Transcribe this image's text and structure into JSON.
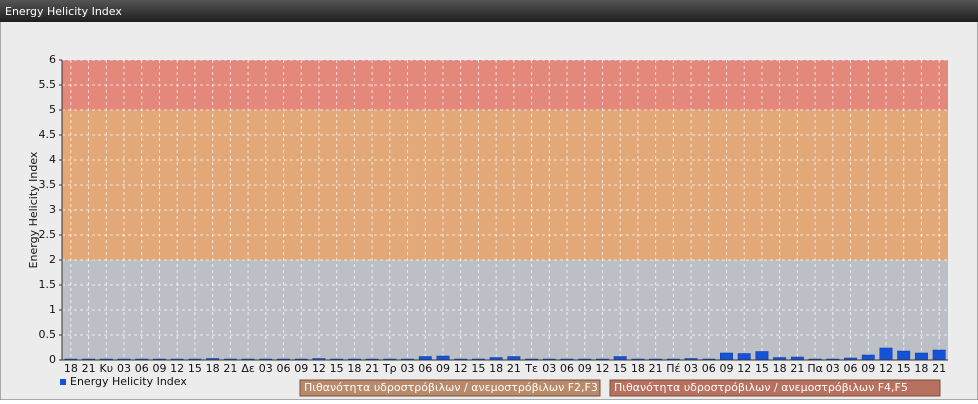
{
  "chart_data": {
    "type": "bar",
    "title": "Energy Helicity Index",
    "y_label": "Energy Helicity Index",
    "categories": [
      "18",
      "21",
      "Κυ",
      "03",
      "06",
      "09",
      "12",
      "15",
      "18",
      "21",
      "Δε",
      "03",
      "06",
      "09",
      "12",
      "15",
      "18",
      "21",
      "Τρ",
      "03",
      "06",
      "09",
      "12",
      "15",
      "18",
      "21",
      "Τε",
      "03",
      "06",
      "09",
      "12",
      "15",
      "18",
      "21",
      "Πέ",
      "03",
      "06",
      "09",
      "12",
      "15",
      "18",
      "21",
      "Πα",
      "03",
      "06",
      "09",
      "12",
      "15",
      "18",
      "21"
    ],
    "series": [
      {
        "name": "Energy Helicity Index",
        "color": "#1452d8",
        "values": [
          0.02,
          0.02,
          0.02,
          0.02,
          0.02,
          0.02,
          0.02,
          0.02,
          0.03,
          0.02,
          0.02,
          0.02,
          0.02,
          0.02,
          0.03,
          0.02,
          0.02,
          0.02,
          0.02,
          0.02,
          0.07,
          0.08,
          0.02,
          0.02,
          0.05,
          0.07,
          0.02,
          0.02,
          0.02,
          0.02,
          0.02,
          0.07,
          0.02,
          0.02,
          0.02,
          0.03,
          0.02,
          0.14,
          0.13,
          0.17,
          0.05,
          0.06,
          0.02,
          0.02,
          0.04,
          0.1,
          0.24,
          0.18,
          0.14,
          0.2
        ]
      }
    ],
    "bands": [
      {
        "from": 0,
        "to": 2,
        "color": "#bcc0c6"
      },
      {
        "from": 2,
        "to": 5,
        "color": "#e3a877",
        "label": "Πιθανότητα υδροστρόβιλων / ανεμοστρόβιλων F2,F3"
      },
      {
        "from": 5,
        "to": 6,
        "color": "#e3887a",
        "label": "Πιθανότητα υδροστρόβιλων / ανεμοστρόβιλων F4,F5"
      }
    ],
    "ylim": [
      0,
      6
    ],
    "yticks": [
      0,
      0.5,
      1,
      1.5,
      2,
      2.5,
      3,
      3.5,
      4,
      4.5,
      5,
      5.5,
      6
    ],
    "grid": true
  }
}
